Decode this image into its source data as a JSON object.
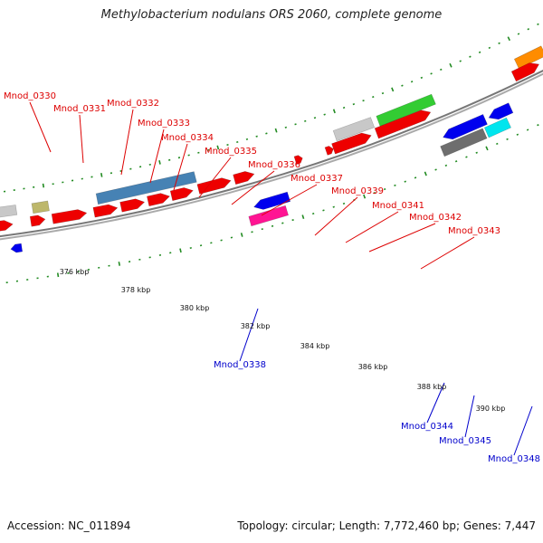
{
  "title": "Methylobacterium nodulans ORS 2060, complete genome",
  "footer": {
    "accession": "Accession: NC_011894",
    "summary": "Topology: circular; Length: 7,772,460 bp; Genes: 7,447"
  },
  "colors": {
    "forward_label": "#dd0000",
    "reverse_label": "#0000cc",
    "backbone": "#888888",
    "tick": "#228b22",
    "cds": "#ee0000",
    "highlight_blue": "#4682b4",
    "highlight_green": "#33cc33",
    "khaki": "#bdb76b",
    "grey": "#c8c8c8",
    "dark_grey": "#6e6e6e",
    "blue": "#0000ee",
    "magenta": "#ff1493",
    "cyan": "#00e5ee",
    "orange": "#ff8c00"
  },
  "scale_labels": [
    "376 kbp",
    "378 kbp",
    "380 kbp",
    "382 kbp",
    "384 kbp",
    "386 kbp",
    "388 kbp",
    "390 kbp"
  ],
  "forward_labels": [
    "Mnod_0330",
    "Mnod_0331",
    "Mnod_0332",
    "Mnod_0333",
    "Mnod_0334",
    "Mnod_0335",
    "Mnod_0336",
    "Mnod_0337",
    "Mnod_0339",
    "Mnod_0341",
    "Mnod_0342",
    "Mnod_0343"
  ],
  "reverse_labels": [
    "Mnod_0338",
    "Mnod_0344",
    "Mnod_0345",
    "Mnod_0348"
  ]
}
